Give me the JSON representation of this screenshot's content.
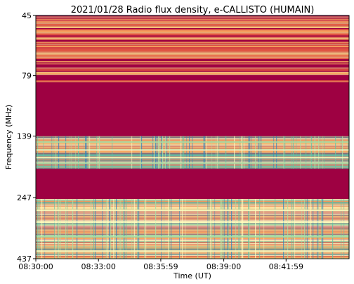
{
  "chart_data": {
    "type": "heatmap",
    "title": "2021/01/28  Radio flux density, e-CALLISTO (HUMAIN)",
    "xlabel": "Time (UT)",
    "ylabel": "Frequency (MHz)",
    "x_ticks": [
      "08:30:00",
      "08:33:00",
      "08:35:59",
      "08:39:00",
      "08:41:59"
    ],
    "x_tick_seconds": [
      0,
      180,
      359,
      540,
      719
    ],
    "x_range_seconds": [
      0,
      900
    ],
    "y_ticks": [
      "45",
      "79",
      "139",
      "247",
      "437"
    ],
    "y_tick_values": [
      45,
      79,
      139,
      247,
      437
    ],
    "y_range_mhz": [
      45,
      437
    ],
    "y_inverted": true,
    "y_scale": "log",
    "colormap": "Spectral_r",
    "colors": {
      "low": "#9e0142",
      "mid_low": "#d53e4f",
      "mid": "#f46d43",
      "mid_high": "#fdae61",
      "high": "#fee08b",
      "peak": "#ffffbf",
      "extreme": "#abdda4",
      "extreme2": "#66c2a5",
      "max": "#3288bd"
    },
    "frequency_bands": [
      {
        "from_mhz": 45,
        "to_mhz": 67,
        "level": 0.28
      },
      {
        "from_mhz": 67,
        "to_mhz": 84,
        "level": 0.22
      },
      {
        "from_mhz": 84,
        "to_mhz": 125,
        "level": 0.0
      },
      {
        "from_mhz": 125,
        "to_mhz": 139,
        "level": 0.0
      },
      {
        "from_mhz": 139,
        "to_mhz": 188,
        "level": 0.65
      },
      {
        "from_mhz": 188,
        "to_mhz": 250,
        "level": 0.0
      },
      {
        "from_mhz": 250,
        "to_mhz": 437,
        "level": 0.6
      }
    ],
    "grid": false,
    "legend": "none"
  }
}
